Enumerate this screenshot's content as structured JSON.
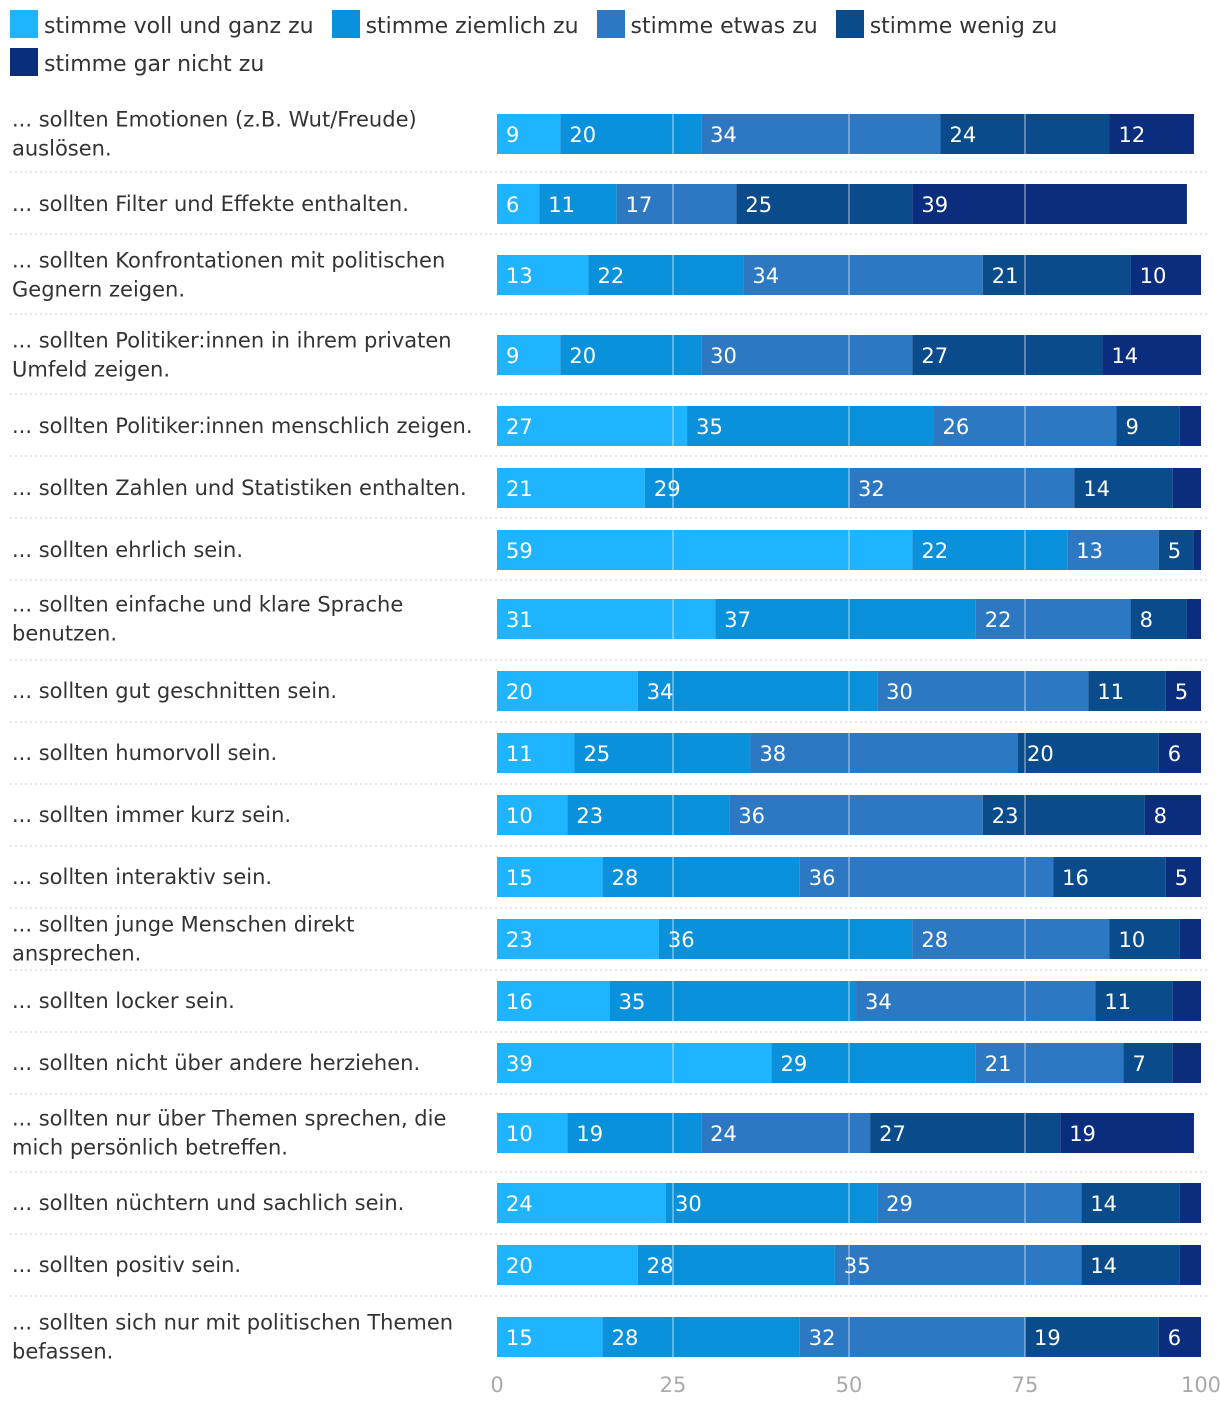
{
  "chart_data": {
    "type": "bar",
    "orientation": "horizontal",
    "stacked": true,
    "categories": [
      "... sollten Emotionen (z.B. Wut/Freude) auslösen.",
      "... sollten Filter und Effekte enthalten.",
      "... sollten Konfrontationen mit politischen Gegnern zeigen.",
      "... sollten Politiker:innen in ihrem privaten Umfeld zeigen.",
      "... sollten Politiker:innen menschlich zeigen.",
      "... sollten Zahlen und Statistiken enthalten.",
      "... sollten ehrlich sein.",
      "... sollten einfache und klare Sprache benutzen.",
      "... sollten gut geschnitten sein.",
      "... sollten humorvoll sein.",
      "... sollten immer kurz sein.",
      "... sollten interaktiv sein.",
      "... sollten junge Menschen direkt ansprechen.",
      "... sollten locker sein.",
      "... sollten nicht über andere herziehen.",
      "... sollten nur über Themen sprechen, die mich persönlich betreffen.",
      "... sollten nüchtern und sachlich sein.",
      "... sollten positiv sein.",
      "... sollten sich nur mit politischen Themen befassen."
    ],
    "series": [
      {
        "name": "stimme voll und ganz zu",
        "color": "#1eb4ff",
        "values": [
          9,
          6,
          13,
          9,
          27,
          21,
          59,
          31,
          20,
          11,
          10,
          15,
          23,
          16,
          39,
          10,
          24,
          20,
          15
        ]
      },
      {
        "name": "stimme ziemlich zu",
        "color": "#0a91dc",
        "values": [
          20,
          11,
          22,
          20,
          35,
          29,
          22,
          37,
          34,
          25,
          23,
          28,
          36,
          35,
          29,
          19,
          30,
          28,
          28
        ]
      },
      {
        "name": "stimme etwas zu",
        "color": "#2d78c3",
        "values": [
          34,
          17,
          34,
          30,
          26,
          32,
          13,
          22,
          30,
          38,
          36,
          36,
          28,
          34,
          21,
          24,
          29,
          35,
          32
        ]
      },
      {
        "name": "stimme wenig zu",
        "color": "#0a4b8c",
        "values": [
          24,
          25,
          21,
          27,
          9,
          14,
          5,
          8,
          11,
          20,
          23,
          16,
          10,
          11,
          7,
          27,
          14,
          14,
          19
        ]
      },
      {
        "name": "stimme gar nicht zu",
        "color": "#0a2d7d",
        "values": [
          12,
          39,
          10,
          14,
          3,
          4,
          1,
          2,
          5,
          6,
          8,
          5,
          3,
          4,
          4,
          19,
          3,
          3,
          6
        ]
      }
    ],
    "hidden_labels_below": 5,
    "x_ticks": [
      0,
      25,
      50,
      75,
      100
    ],
    "xlim": [
      0,
      100
    ],
    "title": "",
    "xlabel": "",
    "ylabel": "",
    "legend_position": "top",
    "grid": true
  }
}
